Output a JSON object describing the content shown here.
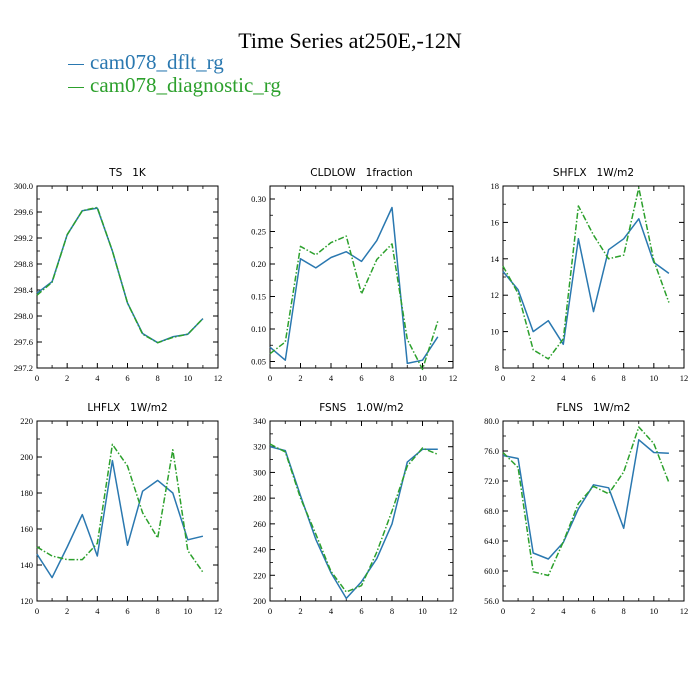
{
  "title": "Time Series at250E,-12N",
  "colors": {
    "dflt": "#2a78b0",
    "diag": "#2ca02c"
  },
  "legend": [
    {
      "label": "cam078_dflt_rg",
      "color": "#2a78b0",
      "dashed": false
    },
    {
      "label": "cam078_diagnostic_rg",
      "color": "#2ca02c",
      "dashed": true
    }
  ],
  "chart_data": [
    {
      "type": "line",
      "title": "TS   1K",
      "xlim": [
        0,
        12
      ],
      "ylim": [
        297.2,
        300.0
      ],
      "xticks": [
        0,
        2,
        4,
        6,
        8,
        10,
        12
      ],
      "xtick_labels": [
        "0",
        "2",
        "4",
        "6",
        "8",
        "10",
        "12"
      ],
      "yticks": [
        297.2,
        297.6,
        298.0,
        298.4,
        298.8,
        299.2,
        299.6,
        300.0
      ],
      "ytick_labels": [
        "297.2",
        "297.6",
        "298.0",
        "298.4",
        "298.8",
        "299.2",
        "299.6",
        "300.0"
      ],
      "x": [
        0,
        1,
        2,
        3,
        4,
        5,
        6,
        7,
        8,
        9,
        10,
        11
      ],
      "series": [
        {
          "name": "cam078_dflt_rg",
          "values": [
            298.35,
            298.53,
            299.25,
            299.62,
            299.66,
            299.0,
            298.2,
            297.73,
            297.59,
            297.68,
            297.72,
            297.96
          ]
        },
        {
          "name": "cam078_diagnostic_rg",
          "values": [
            298.32,
            298.52,
            299.25,
            299.62,
            299.67,
            299.0,
            298.2,
            297.72,
            297.59,
            297.67,
            297.72,
            297.96
          ]
        }
      ]
    },
    {
      "type": "line",
      "title": "CLDLOW   1fraction",
      "xlim": [
        0,
        12
      ],
      "ylim": [
        0.04,
        0.32
      ],
      "xticks": [
        0,
        2,
        4,
        6,
        8,
        10,
        12
      ],
      "xtick_labels": [
        "0",
        "2",
        "4",
        "6",
        "8",
        "10",
        "12"
      ],
      "yticks": [
        0.05,
        0.1,
        0.15,
        0.2,
        0.25,
        0.3
      ],
      "ytick_labels": [
        "0.05",
        "0.10",
        "0.15",
        "0.20",
        "0.25",
        "0.30"
      ],
      "x": [
        0,
        1,
        2,
        3,
        4,
        5,
        6,
        7,
        8,
        9,
        10,
        11
      ],
      "series": [
        {
          "name": "cam078_dflt_rg",
          "values": [
            0.072,
            0.052,
            0.208,
            0.194,
            0.21,
            0.219,
            0.204,
            0.236,
            0.287,
            0.047,
            0.052,
            0.088
          ]
        },
        {
          "name": "cam078_diagnostic_rg",
          "values": [
            0.062,
            0.08,
            0.227,
            0.214,
            0.233,
            0.243,
            0.154,
            0.207,
            0.231,
            0.084,
            0.038,
            0.112
          ]
        }
      ]
    },
    {
      "type": "line",
      "title": "SHFLX   1W/m2",
      "xlim": [
        0,
        12
      ],
      "ylim": [
        8,
        18
      ],
      "xticks": [
        0,
        2,
        4,
        6,
        8,
        10,
        12
      ],
      "xtick_labels": [
        "0",
        "2",
        "4",
        "6",
        "8",
        "10",
        "12"
      ],
      "yticks": [
        8,
        10,
        12,
        14,
        16,
        18
      ],
      "ytick_labels": [
        "8",
        "10",
        "12",
        "14",
        "16",
        "18"
      ],
      "x": [
        0,
        1,
        2,
        3,
        4,
        5,
        6,
        7,
        8,
        9,
        10,
        11
      ],
      "series": [
        {
          "name": "cam078_dflt_rg",
          "values": [
            13.3,
            12.3,
            10.0,
            10.6,
            9.3,
            15.1,
            11.1,
            14.5,
            15.1,
            16.2,
            13.8,
            13.2
          ]
        },
        {
          "name": "cam078_diagnostic_rg",
          "values": [
            13.6,
            12.1,
            9.0,
            8.5,
            9.6,
            16.9,
            15.3,
            14.0,
            14.2,
            17.9,
            13.9,
            11.6
          ]
        }
      ]
    },
    {
      "type": "line",
      "title": "LHFLX   1W/m2",
      "xlim": [
        0,
        12
      ],
      "ylim": [
        120,
        220
      ],
      "xticks": [
        0,
        2,
        4,
        6,
        8,
        10,
        12
      ],
      "xtick_labels": [
        "0",
        "2",
        "4",
        "6",
        "8",
        "10",
        "12"
      ],
      "yticks": [
        120,
        140,
        160,
        180,
        200,
        220
      ],
      "ytick_labels": [
        "120",
        "140",
        "160",
        "180",
        "200",
        "220"
      ],
      "x": [
        0,
        1,
        2,
        3,
        4,
        5,
        6,
        7,
        8,
        9,
        10,
        11
      ],
      "series": [
        {
          "name": "cam078_dflt_rg",
          "values": [
            146,
            133,
            150,
            168,
            145,
            198,
            151,
            181,
            187,
            180,
            154,
            156
          ]
        },
        {
          "name": "cam078_diagnostic_rg",
          "values": [
            150,
            145,
            143,
            143,
            152,
            207,
            195,
            169,
            155,
            204,
            148,
            136
          ]
        }
      ]
    },
    {
      "type": "line",
      "title": "FSNS   1.0W/m2",
      "xlim": [
        0,
        12
      ],
      "ylim": [
        200,
        340
      ],
      "xticks": [
        0,
        2,
        4,
        6,
        8,
        10,
        12
      ],
      "xtick_labels": [
        "0",
        "2",
        "4",
        "6",
        "8",
        "10",
        "12"
      ],
      "yticks": [
        200,
        220,
        240,
        260,
        280,
        300,
        320,
        340
      ],
      "ytick_labels": [
        "200",
        "220",
        "240",
        "260",
        "280",
        "300",
        "320",
        "340"
      ],
      "x": [
        0,
        1,
        2,
        3,
        4,
        5,
        6,
        7,
        8,
        9,
        10,
        11
      ],
      "series": [
        {
          "name": "cam078_dflt_rg",
          "values": [
            320,
            317,
            282,
            248,
            222,
            202,
            215,
            233,
            260,
            308,
            318,
            318
          ]
        },
        {
          "name": "cam078_diagnostic_rg",
          "values": [
            322,
            316,
            280,
            252,
            223,
            207,
            212,
            238,
            270,
            305,
            319,
            314
          ]
        }
      ]
    },
    {
      "type": "line",
      "title": "FLNS   1W/m2",
      "xlim": [
        0,
        12
      ],
      "ylim": [
        56,
        80
      ],
      "xticks": [
        0,
        2,
        4,
        6,
        8,
        10,
        12
      ],
      "xtick_labels": [
        "0",
        "2",
        "4",
        "6",
        "8",
        "10",
        "12"
      ],
      "yticks": [
        56,
        60,
        64,
        68,
        72,
        76,
        80
      ],
      "ytick_labels": [
        "56.0",
        "60.0",
        "64.0",
        "68.0",
        "72.0",
        "76.0",
        "80.0"
      ],
      "x": [
        0,
        1,
        2,
        3,
        4,
        5,
        6,
        7,
        8,
        9,
        10,
        11
      ],
      "series": [
        {
          "name": "cam078_dflt_rg",
          "values": [
            75.4,
            75.0,
            62.4,
            61.6,
            63.8,
            68.3,
            71.5,
            71.1,
            65.7,
            77.5,
            75.8,
            75.7
          ]
        },
        {
          "name": "cam078_diagnostic_rg",
          "values": [
            75.8,
            73.8,
            59.9,
            59.4,
            63.9,
            69.0,
            71.3,
            70.3,
            73.2,
            79.2,
            77.0,
            71.8
          ]
        }
      ]
    }
  ]
}
